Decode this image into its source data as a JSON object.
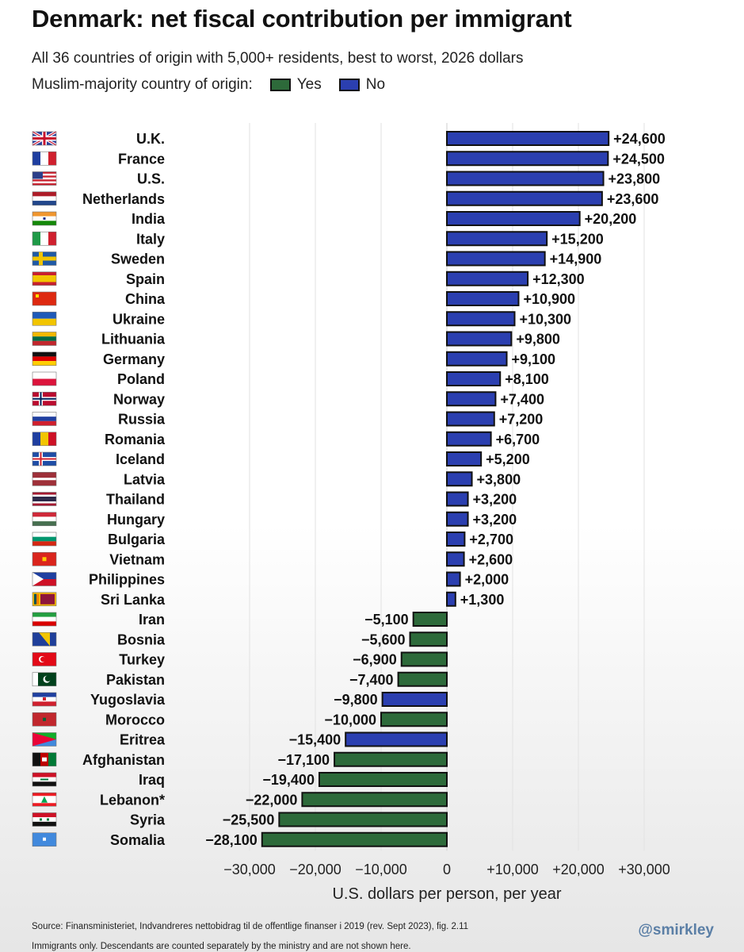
{
  "header": {
    "title": "Denmark: net fiscal contribution per immigrant",
    "subtitle": "All 36 countries of origin with 5,000+ residents, best to worst, 2026 dollars",
    "legend_prefix": "Muslim-majority country of origin:",
    "legend_yes": "Yes",
    "legend_no": "No"
  },
  "colors": {
    "yes": "#2d6a3a",
    "no": "#2b3fb0",
    "grid": "#e2e2e2",
    "border": "#111111"
  },
  "chart_data": {
    "type": "bar",
    "orientation": "horizontal",
    "categories": [
      "U.K.",
      "France",
      "U.S.",
      "Netherlands",
      "India",
      "Italy",
      "Sweden",
      "Spain",
      "China",
      "Ukraine",
      "Lithuania",
      "Germany",
      "Poland",
      "Norway",
      "Russia",
      "Romania",
      "Iceland",
      "Latvia",
      "Thailand",
      "Hungary",
      "Bulgaria",
      "Vietnam",
      "Philippines",
      "Sri Lanka",
      "Iran",
      "Bosnia",
      "Turkey",
      "Pakistan",
      "Yugoslavia",
      "Morocco",
      "Eritrea",
      "Afghanistan",
      "Iraq",
      "Lebanon*",
      "Syria",
      "Somalia"
    ],
    "values": [
      24600,
      24500,
      23800,
      23600,
      20200,
      15200,
      14900,
      12300,
      10900,
      10300,
      9800,
      9100,
      8100,
      7400,
      7200,
      6700,
      5200,
      3800,
      3200,
      3200,
      2700,
      2600,
      2000,
      1300,
      -5100,
      -5600,
      -6900,
      -7400,
      -9800,
      -10000,
      -15400,
      -17100,
      -19400,
      -22000,
      -25500,
      -28100
    ],
    "data_labels": [
      "+24,600",
      "+24,500",
      "+23,800",
      "+23,600",
      "+20,200",
      "+15,200",
      "+14,900",
      "+12,300",
      "+10,900",
      "+10,300",
      "+9,800",
      "+9,100",
      "+8,100",
      "+7,400",
      "+7,200",
      "+6,700",
      "+5,200",
      "+3,800",
      "+3,200",
      "+3,200",
      "+2,700",
      "+2,600",
      "+2,000",
      "+1,300",
      "−5,100",
      "−5,600",
      "−6,900",
      "−7,400",
      "−9,800",
      "−10,000",
      "−15,400",
      "−17,100",
      "−19,400",
      "−22,000",
      "−25,500",
      "−28,100"
    ],
    "muslim_majority": [
      false,
      false,
      false,
      false,
      false,
      false,
      false,
      false,
      false,
      false,
      false,
      false,
      false,
      false,
      false,
      false,
      false,
      false,
      false,
      false,
      false,
      false,
      false,
      false,
      true,
      true,
      true,
      true,
      false,
      true,
      false,
      true,
      true,
      true,
      true,
      true
    ],
    "flags": [
      "gb",
      "fr",
      "us",
      "nl",
      "in",
      "it",
      "se",
      "es",
      "cn",
      "ua",
      "lt",
      "de",
      "pl",
      "no",
      "ru",
      "ro",
      "is",
      "lv",
      "th",
      "hu",
      "bg",
      "vn",
      "ph",
      "lk",
      "ir",
      "ba",
      "tr",
      "pk",
      "yu",
      "ma",
      "er",
      "af",
      "iq",
      "lb",
      "sy",
      "so"
    ],
    "xlim": [
      -30000,
      30000
    ],
    "x_ticks": [
      -30000,
      -20000,
      -10000,
      0,
      10000,
      20000,
      30000
    ],
    "x_tick_labels": [
      "−30,000",
      "−20,000",
      "−10,000",
      "0",
      "+10,000",
      "+20,000",
      "+30,000"
    ],
    "xlabel": "U.S. dollars per person, per year",
    "grid": true
  },
  "footer": {
    "source": "Source: Finansministeriet, Indvandreres nettobidrag til de offentlige finanser i 2019 (rev. Sept 2023), fig. 2.11",
    "note": "Immigrants only. Descendants are counted separately by the ministry and are not shown here.",
    "handle": "@smirkley"
  }
}
